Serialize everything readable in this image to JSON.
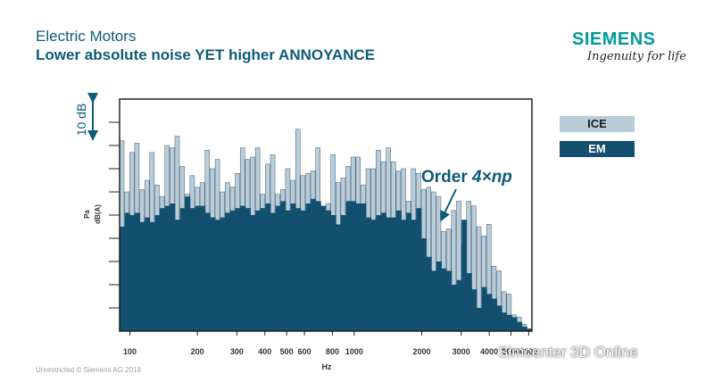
{
  "header": {
    "title": "Electric Motors",
    "subtitle": "Lower absolute noise YET higher ANNOYANCE"
  },
  "brand": {
    "name": "SIEMENS",
    "tagline": "Ingenuity for life"
  },
  "footer": {
    "text": "Unrestricted © Siemens AG 2018"
  },
  "watermark": {
    "text": "Simcenter 3D Online"
  },
  "colors": {
    "ice": "#b9ccd8",
    "em": "#134f6f",
    "accent": "#0e5a78"
  },
  "chart_data": {
    "type": "bar",
    "xscale": "log",
    "xlabel": "Hz",
    "ylabel_line1": "Pa",
    "ylabel_line2": "dB(A)",
    "scale_label": "10 dB",
    "annotation": {
      "text_prefix": "Order ",
      "text_emph": "4×np",
      "x": 3300
    },
    "xlim": [
      90,
      6200
    ],
    "ylim": [
      0,
      100
    ],
    "x_ticks": [
      100,
      200,
      300,
      400,
      500,
      600,
      800,
      1000,
      2000,
      3000,
      4000,
      5000,
      6000
    ],
    "x_tick_labels": [
      "100",
      "200",
      "300",
      "400",
      "500",
      "600",
      "800",
      "1000",
      "2000",
      "3000",
      "4000",
      "5000",
      "6000"
    ],
    "legend": [
      "ICE",
      "EM"
    ],
    "series": [
      {
        "name": "ICE",
        "values": [
          82,
          60,
          77,
          81,
          61,
          65,
          77,
          63,
          58,
          80,
          79,
          84,
          71,
          59,
          67,
          62,
          64,
          78,
          70,
          74,
          60,
          64,
          62,
          68,
          79,
          74,
          75,
          79,
          59,
          72,
          76,
          59,
          61,
          70,
          65,
          87,
          67,
          68,
          69,
          79,
          52,
          55,
          76,
          64,
          66,
          71,
          75,
          75,
          63,
          70,
          70,
          78,
          73,
          79,
          73,
          69,
          70,
          56,
          70,
          68,
          61,
          62,
          60,
          58,
          43,
          44,
          52,
          56,
          37,
          56,
          54,
          45,
          41,
          46,
          28,
          26,
          17,
          16,
          7,
          6,
          3,
          1
        ]
      },
      {
        "name": "EM",
        "values": [
          45,
          51,
          50,
          51,
          47,
          49,
          47,
          50,
          53,
          54,
          55,
          48,
          53,
          58,
          53,
          54,
          54,
          51,
          49,
          48,
          49,
          51,
          52,
          53,
          54,
          53,
          50,
          52,
          53,
          55,
          51,
          54,
          56,
          52,
          55,
          53,
          52,
          55,
          57,
          56,
          54,
          52,
          50,
          46,
          50,
          56,
          56,
          55,
          55,
          49,
          48,
          50,
          51,
          49,
          49,
          52,
          48,
          51,
          48,
          53,
          40,
          32,
          26,
          30,
          27,
          26,
          20,
          22,
          48,
          25,
          18,
          10,
          19,
          16,
          14,
          11,
          8,
          7,
          6,
          4,
          2,
          1
        ]
      }
    ]
  }
}
